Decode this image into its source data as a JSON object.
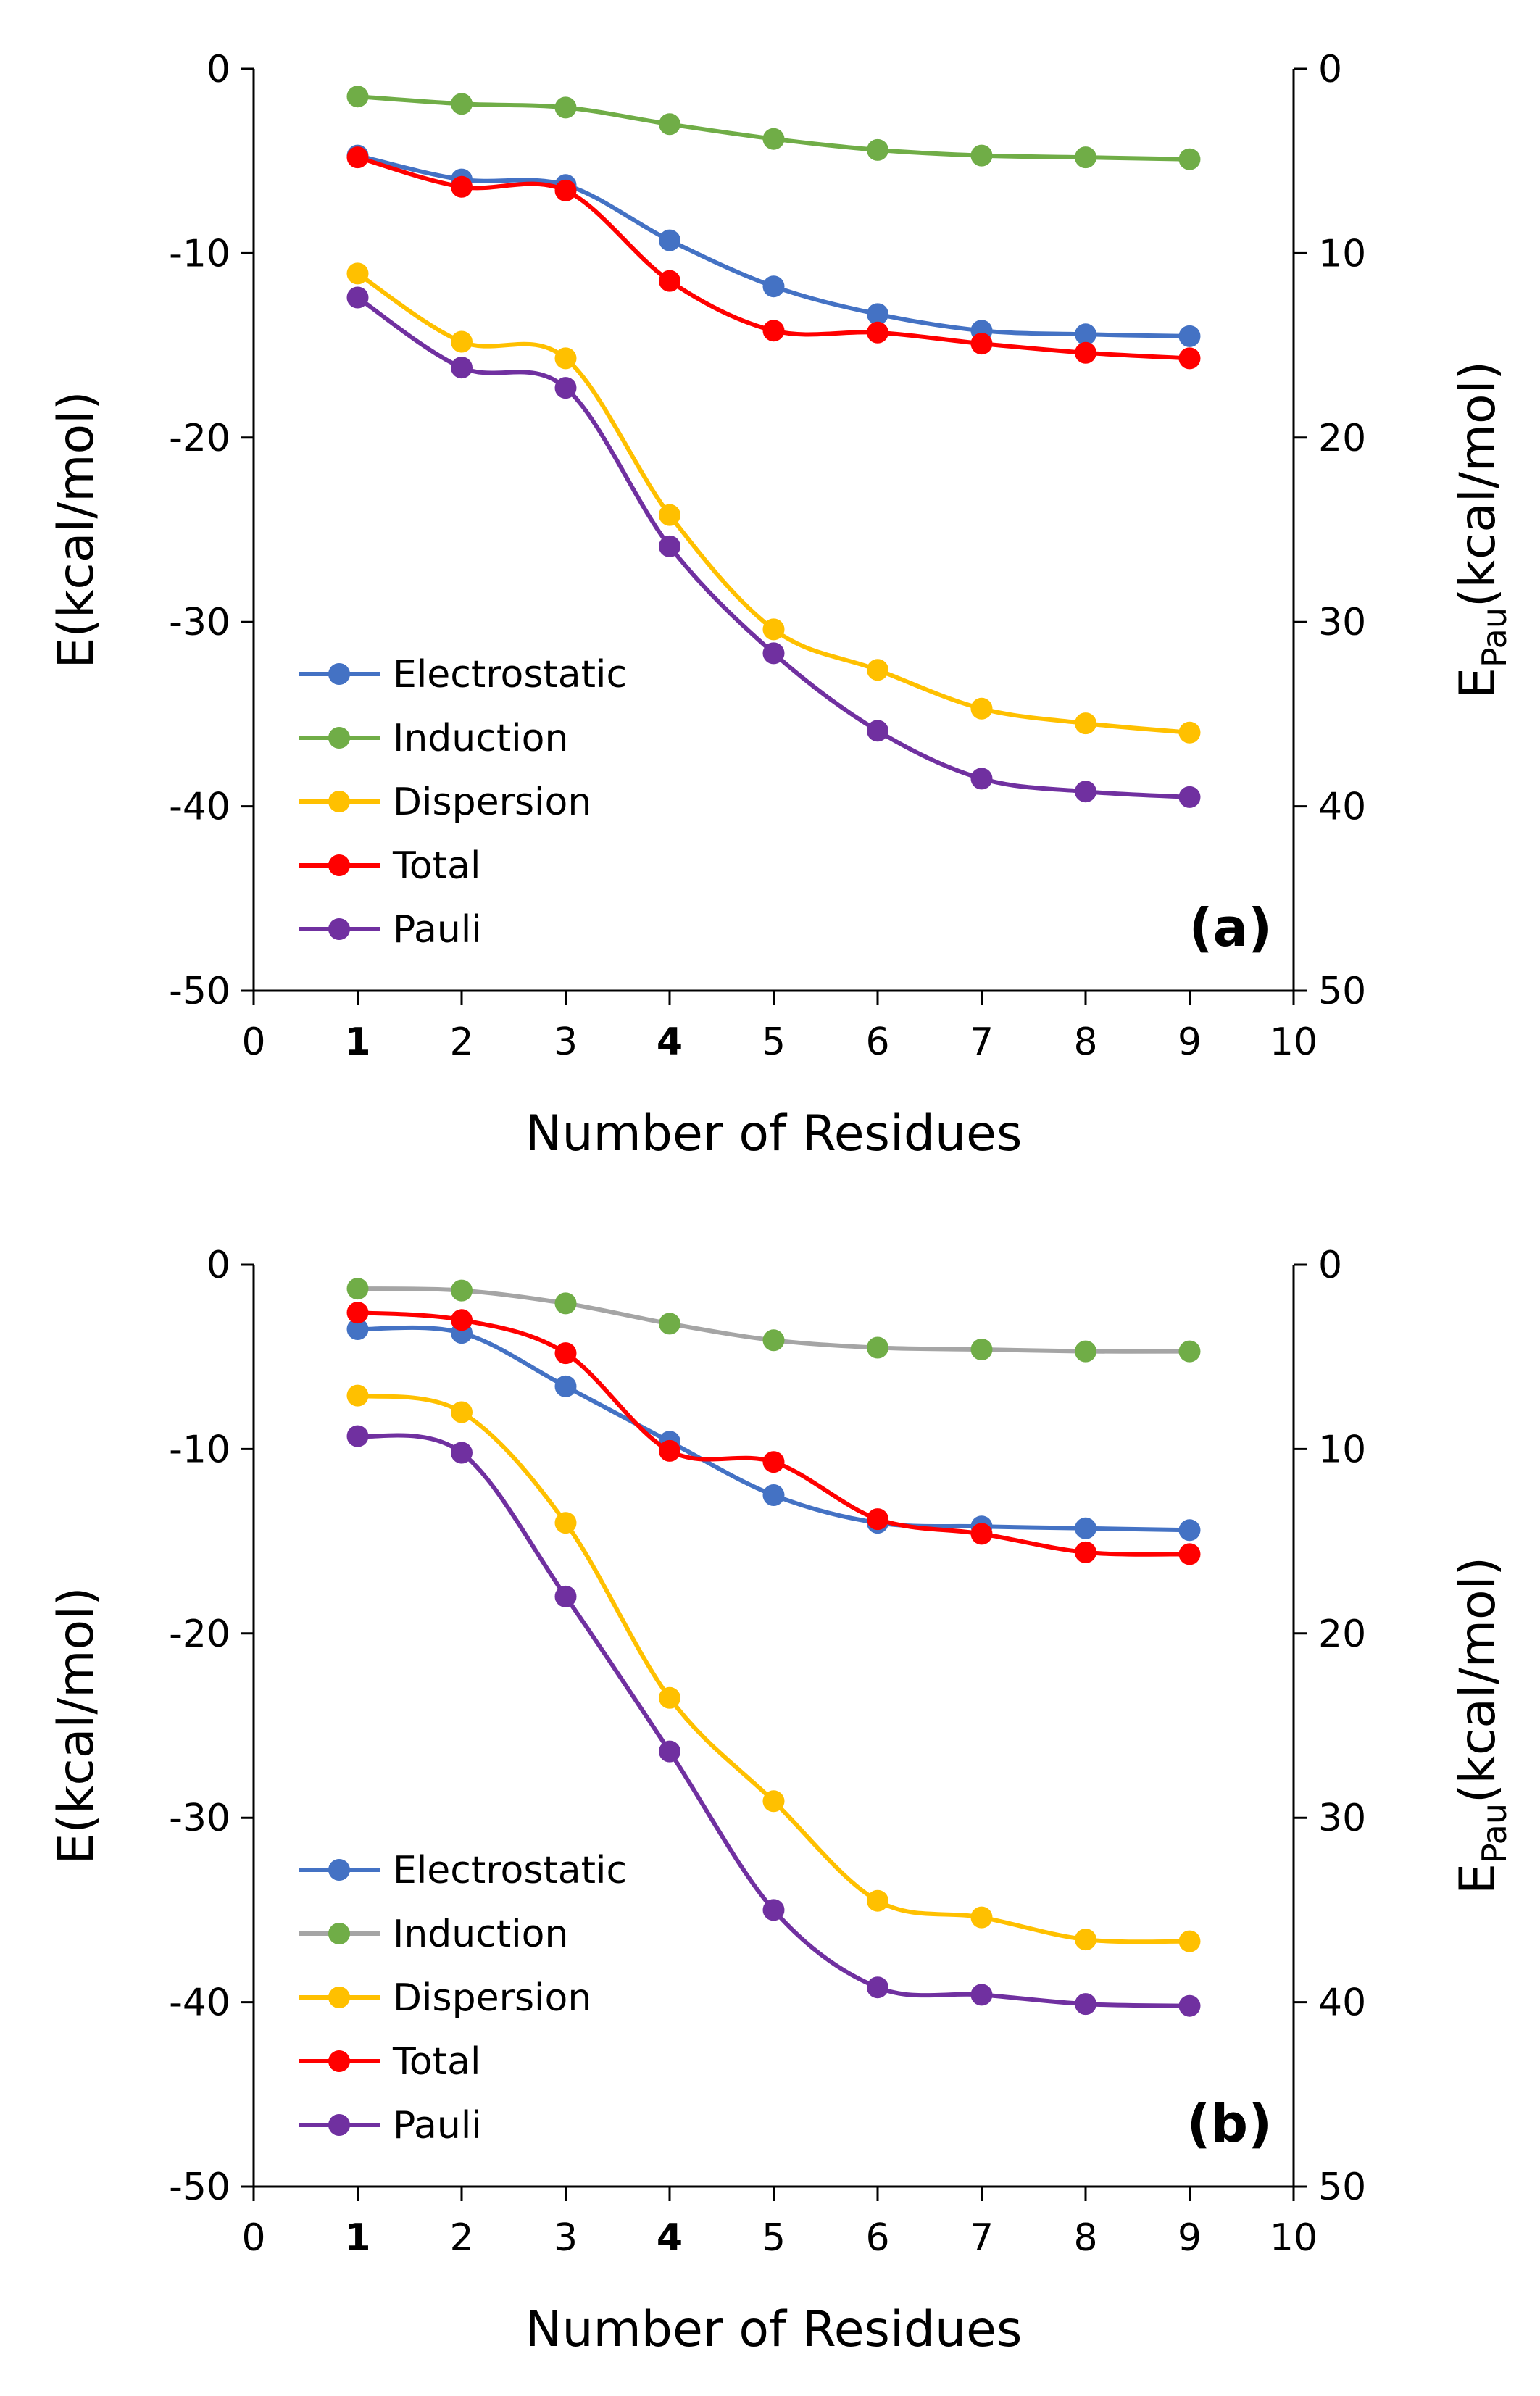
{
  "chart_data": [
    {
      "type": "line",
      "panel_label": "(a)",
      "xlabel": "Number of Residues",
      "ylabel": "E(kcal/mol)",
      "y2label_main": "E",
      "y2label_sub": "Pau",
      "y2label_rest": "(kcal/mol)",
      "xlim": [
        0,
        10
      ],
      "ylim": [
        -50,
        0
      ],
      "y2lim": [
        50,
        0
      ],
      "x_ticks": [
        "0",
        "1",
        "2",
        "3",
        "4",
        "5",
        "6",
        "7",
        "8",
        "9",
        "10"
      ],
      "y_ticks": [
        "0",
        "-10",
        "-20",
        "-30",
        "-40",
        "-50"
      ],
      "y2_ticks": [
        "0",
        "10",
        "20",
        "30",
        "40",
        "50"
      ],
      "x": [
        1,
        2,
        3,
        4,
        5,
        6,
        7,
        8,
        9
      ],
      "legend_position": "bottom-left",
      "series": [
        {
          "name": "Electrostatic",
          "color": "#4472C4",
          "line_color": "#4472C4",
          "values": [
            -4.7,
            -6.0,
            -6.3,
            -9.3,
            -11.8,
            -13.3,
            -14.2,
            -14.4,
            -14.5
          ]
        },
        {
          "name": "Induction",
          "color": "#70AD47",
          "line_color": "#70AD47",
          "values": [
            -1.5,
            -1.9,
            -2.1,
            -3.0,
            -3.8,
            -4.4,
            -4.7,
            -4.8,
            -4.9
          ]
        },
        {
          "name": "Dispersion",
          "color": "#FFC000",
          "line_color": "#FFC000",
          "values": [
            -11.1,
            -14.8,
            -15.7,
            -24.2,
            -30.4,
            -32.6,
            -34.7,
            -35.5,
            -36.0
          ]
        },
        {
          "name": "Total",
          "color": "#FF0000",
          "line_color": "#FF0000",
          "values": [
            -4.8,
            -6.4,
            -6.6,
            -11.5,
            -14.2,
            -14.3,
            -14.9,
            -15.4,
            -15.7
          ]
        },
        {
          "name": "Pauli",
          "color": "#7030A0",
          "line_color": "#7030A0",
          "values": [
            -12.4,
            -16.2,
            -17.3,
            -25.9,
            -31.7,
            -35.9,
            -38.5,
            -39.2,
            -39.5
          ]
        }
      ]
    },
    {
      "type": "line",
      "panel_label": "(b)",
      "xlabel": "Number of Residues",
      "ylabel": "E(kcal/mol)",
      "y2label_main": "E",
      "y2label_sub": "Pau",
      "y2label_rest": "(kcal/mol)",
      "xlim": [
        0,
        10
      ],
      "ylim": [
        -50,
        0
      ],
      "y2lim": [
        50,
        0
      ],
      "x_ticks": [
        "0",
        "1",
        "2",
        "3",
        "4",
        "5",
        "6",
        "7",
        "8",
        "9",
        "10"
      ],
      "y_ticks": [
        "0",
        "-10",
        "-20",
        "-30",
        "-40",
        "-50"
      ],
      "y2_ticks": [
        "0",
        "10",
        "20",
        "30",
        "40",
        "50"
      ],
      "x": [
        1,
        2,
        3,
        4,
        5,
        6,
        7,
        8,
        9
      ],
      "legend_position": "bottom-left",
      "series": [
        {
          "name": "Electrostatic",
          "color": "#4472C4",
          "line_color": "#4472C4",
          "values": [
            -3.5,
            -3.7,
            -6.6,
            -9.6,
            -12.5,
            -14.0,
            -14.2,
            -14.3,
            -14.4
          ]
        },
        {
          "name": "Induction",
          "color": "#70AD47",
          "line_color": "#A5A5A5",
          "values": [
            -1.3,
            -1.4,
            -2.1,
            -3.2,
            -4.1,
            -4.5,
            -4.6,
            -4.7,
            -4.7
          ]
        },
        {
          "name": "Dispersion",
          "color": "#FFC000",
          "line_color": "#FFC000",
          "values": [
            -7.1,
            -8.0,
            -14.0,
            -23.5,
            -29.1,
            -34.5,
            -35.4,
            -36.6,
            -36.7
          ]
        },
        {
          "name": "Total",
          "color": "#FF0000",
          "line_color": "#FF0000",
          "values": [
            -2.6,
            -3.0,
            -4.8,
            -10.1,
            -10.7,
            -13.8,
            -14.6,
            -15.6,
            -15.7
          ]
        },
        {
          "name": "Pauli",
          "color": "#7030A0",
          "line_color": "#7030A0",
          "values": [
            -9.3,
            -10.2,
            -18.0,
            -26.4,
            -35.0,
            -39.2,
            -39.6,
            -40.1,
            -40.2
          ]
        }
      ]
    }
  ]
}
